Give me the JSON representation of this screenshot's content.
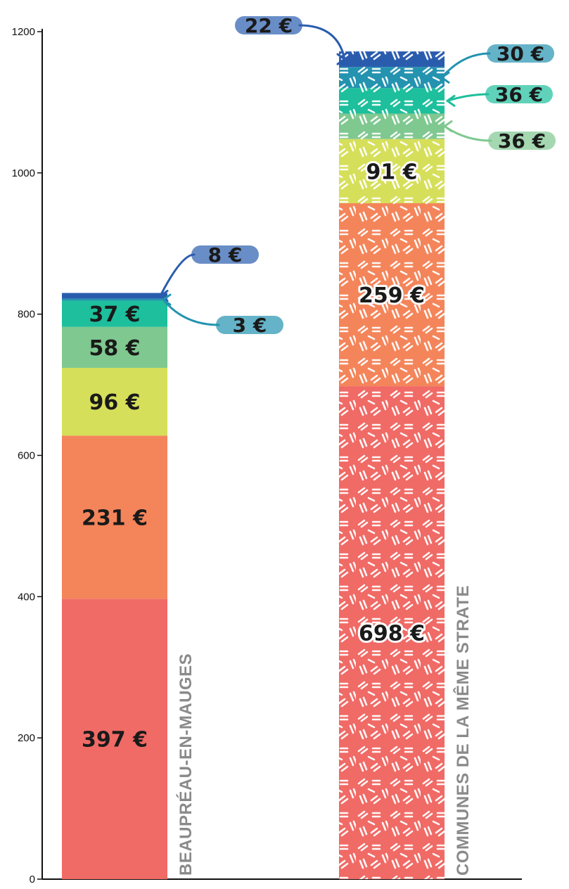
{
  "chart_data": {
    "type": "bar",
    "stacked": true,
    "categories": [
      "BEAUPRÉAU-EN-MAUGES",
      "COMMUNES DE LA MÊME STRATE"
    ],
    "ylim": [
      0,
      1200
    ],
    "yticks": [
      0,
      200,
      400,
      600,
      800,
      1000,
      1200
    ],
    "grid": false,
    "series": [
      {
        "values": [
          397,
          698
        ],
        "labels": [
          "397 €",
          "698 €"
        ],
        "color": "#f06a66"
      },
      {
        "values": [
          231,
          259
        ],
        "labels": [
          "231 €",
          "259 €"
        ],
        "color": "#f4855a"
      },
      {
        "values": [
          96,
          91
        ],
        "labels": [
          "96 €",
          "91 €"
        ],
        "color": "#d6df5a"
      },
      {
        "values": [
          58,
          36
        ],
        "labels": [
          "58 €",
          "36 €"
        ],
        "color": "#7fc890"
      },
      {
        "values": [
          37,
          36
        ],
        "labels": [
          "37 €",
          "36 €"
        ],
        "color": "#1dbf9c"
      },
      {
        "values": [
          3,
          30
        ],
        "labels": [
          "3 €",
          "30 €"
        ],
        "color": "#2393b0"
      },
      {
        "values": [
          8,
          22
        ],
        "labels": [
          "8 €",
          "22 €"
        ],
        "color": "#2a5cae"
      }
    ]
  }
}
